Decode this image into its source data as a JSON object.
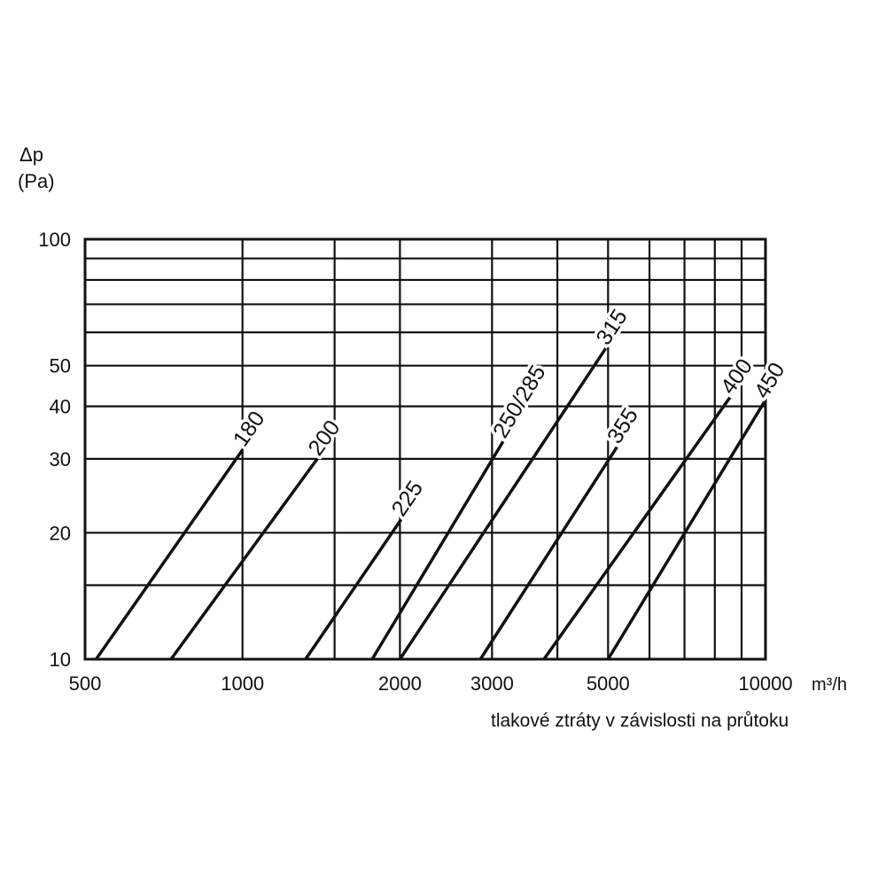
{
  "chart_data": {
    "type": "line",
    "x_scale": "log",
    "y_scale": "log",
    "xlim": [
      500,
      10000
    ],
    "ylim": [
      10,
      100
    ],
    "xlabel": "m³/h",
    "ylabel": [
      "Δp",
      "(Pa)"
    ],
    "caption": "tlakové ztráty v závislosti na průtoku",
    "x_ticks": [
      500,
      1000,
      2000,
      3000,
      5000,
      10000
    ],
    "x_tick_labels": [
      "500",
      "1000",
      "2000",
      "3000",
      "5000",
      "10000"
    ],
    "x_grid": [
      500,
      1000,
      1500,
      2000,
      3000,
      4000,
      5000,
      6000,
      7000,
      8000,
      9000,
      10000
    ],
    "y_ticks": [
      10,
      20,
      30,
      40,
      50,
      100
    ],
    "y_tick_labels": [
      "10",
      "20",
      "30",
      "40",
      "50",
      "100"
    ],
    "y_grid": [
      10,
      15,
      20,
      30,
      40,
      50,
      60,
      70,
      80,
      90,
      100
    ],
    "grid": true,
    "series": [
      {
        "name": "180",
        "points": [
          [
            525,
            10
          ],
          [
            1000,
            31.5
          ]
        ]
      },
      {
        "name": "200",
        "points": [
          [
            730,
            10
          ],
          [
            1390,
            30
          ]
        ]
      },
      {
        "name": "225",
        "points": [
          [
            1320,
            10
          ],
          [
            2010,
            21.5
          ]
        ]
      },
      {
        "name": "250/285",
        "points": [
          [
            1770,
            10
          ],
          [
            3150,
            33
          ]
        ]
      },
      {
        "name": "315",
        "points": [
          [
            2000,
            10
          ],
          [
            4950,
            55
          ]
        ]
      },
      {
        "name": "355",
        "points": [
          [
            2850,
            10
          ],
          [
            5200,
            32
          ]
        ]
      },
      {
        "name": "400",
        "points": [
          [
            3770,
            10
          ],
          [
            8550,
            42
          ]
        ]
      },
      {
        "name": "450",
        "points": [
          [
            5000,
            10
          ],
          [
            9950,
            41
          ]
        ]
      }
    ]
  }
}
